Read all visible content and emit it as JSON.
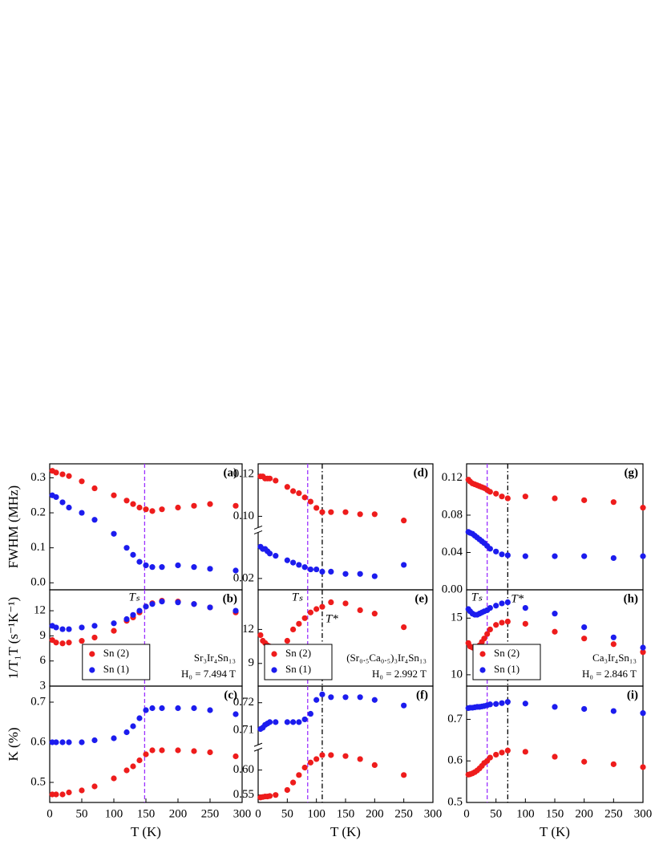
{
  "chart_data": [
    {
      "type": "scatter",
      "label": "(a)",
      "ylabel": "FWHM (MHz)",
      "xlim": [
        0,
        300
      ],
      "ylim": [
        -0.02,
        0.34
      ],
      "yticks": [
        {
          "value": 0,
          "label": "0.0"
        },
        0.1,
        0.2,
        0.3
      ],
      "vlines": [
        {
          "x": 148,
          "color": "#9b30ff",
          "style": "dashed"
        }
      ],
      "series": [
        {
          "color": "#ee1c1c",
          "x": [
            4,
            10,
            20,
            30,
            50,
            70,
            100,
            120,
            130,
            140,
            150,
            160,
            175,
            200,
            225,
            250,
            290
          ],
          "values": [
            0.32,
            0.315,
            0.31,
            0.305,
            0.29,
            0.27,
            0.25,
            0.235,
            0.225,
            0.215,
            0.21,
            0.205,
            0.21,
            0.215,
            0.22,
            0.225,
            0.22
          ]
        },
        {
          "color": "#1c1cee",
          "x": [
            4,
            10,
            20,
            30,
            50,
            70,
            100,
            120,
            130,
            140,
            150,
            160,
            175,
            200,
            225,
            250,
            290
          ],
          "values": [
            0.25,
            0.245,
            0.23,
            0.215,
            0.2,
            0.18,
            0.14,
            0.1,
            0.08,
            0.06,
            0.05,
            0.045,
            0.045,
            0.05,
            0.045,
            0.04,
            0.035
          ]
        }
      ]
    },
    {
      "type": "scatter",
      "label": "(b)",
      "ylabel": "1/T₁T (s⁻¹K⁻¹)",
      "xlim": [
        0,
        300
      ],
      "ylim": [
        3,
        14.5
      ],
      "yticks": [
        3,
        6,
        9,
        12
      ],
      "legend": "lower center",
      "text_lines": [
        "Sr₃Ir₄Sn₁₃",
        "H₀ = 7.494 T"
      ],
      "vlines": [
        {
          "x": 148,
          "color": "#9b30ff",
          "style": "dashed",
          "label": "Tₛ"
        }
      ],
      "series": [
        {
          "name": "Sn (2)",
          "color": "#ee1c1c",
          "x": [
            4,
            10,
            20,
            30,
            50,
            70,
            100,
            120,
            130,
            140,
            150,
            160,
            175,
            200,
            225,
            250,
            290
          ],
          "values": [
            8.5,
            8.2,
            8.1,
            8.2,
            8.4,
            8.8,
            9.6,
            10.8,
            11.2,
            11.8,
            12.5,
            12.9,
            13.2,
            13.1,
            12.8,
            12.4,
            11.8
          ]
        },
        {
          "name": "Sn (1)",
          "color": "#1c1cee",
          "x": [
            4,
            10,
            20,
            30,
            50,
            70,
            100,
            120,
            130,
            140,
            150,
            160,
            175,
            200,
            225,
            250,
            290
          ],
          "values": [
            10.2,
            10,
            9.8,
            9.8,
            10,
            10.2,
            10.5,
            11,
            11.5,
            12,
            12.5,
            12.8,
            13.1,
            13,
            12.8,
            12.4,
            12
          ]
        }
      ]
    },
    {
      "type": "scatter",
      "label": "(c)",
      "ylabel": "K (%)",
      "xlabel": "T (K)",
      "xlim": [
        0,
        300
      ],
      "ylim": [
        0.45,
        0.74
      ],
      "xticks": [
        0,
        50,
        100,
        150,
        200,
        250,
        300
      ],
      "yticks": [
        0.5,
        0.6,
        0.7
      ],
      "vlines": [
        {
          "x": 148,
          "color": "#9b30ff",
          "style": "dashed"
        }
      ],
      "series": [
        {
          "color": "#ee1c1c",
          "x": [
            4,
            10,
            20,
            30,
            50,
            70,
            100,
            120,
            130,
            140,
            150,
            160,
            175,
            200,
            225,
            250,
            290
          ],
          "values": [
            0.47,
            0.47,
            0.47,
            0.475,
            0.48,
            0.49,
            0.51,
            0.53,
            0.54,
            0.555,
            0.57,
            0.58,
            0.58,
            0.58,
            0.578,
            0.575,
            0.565
          ]
        },
        {
          "color": "#1c1cee",
          "x": [
            4,
            10,
            20,
            30,
            50,
            70,
            100,
            120,
            130,
            140,
            150,
            160,
            175,
            200,
            225,
            250,
            290
          ],
          "values": [
            0.6,
            0.6,
            0.6,
            0.6,
            0.6,
            0.605,
            0.61,
            0.625,
            0.64,
            0.66,
            0.68,
            0.685,
            0.685,
            0.685,
            0.685,
            0.68,
            0.67
          ]
        }
      ]
    },
    {
      "type": "scatter",
      "label": "(d)",
      "xlim": [
        0,
        300
      ],
      "ylim": [
        0.015,
        0.125
      ],
      "ybreak": [
        0.04,
        0.095
      ],
      "yticks": [
        0.02,
        {
          "value": 0.1,
          "label": "0.10"
        },
        0.12
      ],
      "vlines": [
        {
          "x": 85,
          "color": "#9b30ff",
          "style": "dashed"
        },
        {
          "x": 110,
          "color": "#000000",
          "style": "dashdot"
        }
      ],
      "series": [
        {
          "color": "#ee1c1c",
          "x": [
            4,
            8,
            12,
            16,
            20,
            30,
            50,
            60,
            70,
            80,
            90,
            100,
            110,
            125,
            150,
            175,
            200,
            250
          ],
          "values": [
            0.119,
            0.119,
            0.118,
            0.118,
            0.118,
            0.117,
            0.114,
            0.112,
            0.111,
            0.109,
            0.107,
            0.104,
            0.102,
            0.102,
            0.102,
            0.101,
            0.101,
            0.098
          ]
        },
        {
          "color": "#1c1cee",
          "x": [
            4,
            8,
            12,
            16,
            20,
            30,
            50,
            60,
            70,
            80,
            90,
            100,
            110,
            125,
            150,
            175,
            200,
            250
          ],
          "values": [
            0.034,
            0.033,
            0.033,
            0.032,
            0.031,
            0.03,
            0.028,
            0.027,
            0.026,
            0.025,
            0.024,
            0.024,
            0.023,
            0.023,
            0.022,
            0.022,
            0.021,
            0.026
          ]
        }
      ]
    },
    {
      "type": "scatter",
      "label": "(e)",
      "xlim": [
        0,
        300
      ],
      "ylim": [
        7,
        15.5
      ],
      "yticks": [
        9,
        12
      ],
      "legend": "lower left",
      "text_lines": [
        "(Sr₀.₅Ca₀.₅)₃Ir₄Sn₁₃",
        "H₀ = 2.992 T"
      ],
      "vlines": [
        {
          "x": 85,
          "color": "#9b30ff",
          "style": "dashed",
          "label": "Tₛ"
        },
        {
          "x": 110,
          "color": "#000000",
          "style": "dashdot",
          "label": "T*"
        }
      ],
      "series": [
        {
          "name": "Sn (2)",
          "color": "#ee1c1c",
          "x": [
            4,
            8,
            12,
            16,
            20,
            30,
            50,
            60,
            70,
            80,
            90,
            100,
            110,
            125,
            150,
            175,
            200,
            250
          ],
          "values": [
            11.5,
            11,
            10.8,
            10.6,
            10.5,
            10.4,
            11,
            12,
            12.5,
            13,
            13.5,
            13.8,
            14,
            14.4,
            14.3,
            13.7,
            13.4,
            12.2
          ]
        },
        {
          "name": "Sn (1)",
          "color": "#1c1cee",
          "x": [],
          "values": []
        }
      ]
    },
    {
      "type": "scatter",
      "label": "(f)",
      "xlabel": "T (K)",
      "xlim": [
        0,
        300
      ],
      "ylim": [
        0.535,
        0.726
      ],
      "ybreak": [
        0.64,
        0.705
      ],
      "xticks": [
        0,
        50,
        100,
        150,
        200,
        250,
        300
      ],
      "yticks": [
        0.55,
        {
          "value": 0.6,
          "label": "0.60"
        },
        0.71,
        0.72
      ],
      "vlines": [
        {
          "x": 85,
          "color": "#9b30ff",
          "style": "dashed"
        },
        {
          "x": 110,
          "color": "#000000",
          "style": "dashdot"
        }
      ],
      "series": [
        {
          "color": "#ee1c1c",
          "x": [
            4,
            8,
            12,
            16,
            20,
            30,
            50,
            60,
            70,
            80,
            90,
            100,
            110,
            125,
            150,
            175,
            200,
            250
          ],
          "values": [
            0.545,
            0.546,
            0.547,
            0.547,
            0.548,
            0.55,
            0.56,
            0.575,
            0.59,
            0.605,
            0.615,
            0.622,
            0.63,
            0.63,
            0.628,
            0.622,
            0.61,
            0.59
          ]
        },
        {
          "color": "#1c1cee",
          "x": [
            4,
            8,
            12,
            16,
            20,
            30,
            50,
            60,
            70,
            80,
            90,
            100,
            110,
            125,
            150,
            175,
            200,
            250
          ],
          "values": [
            0.7105,
            0.711,
            0.712,
            0.7125,
            0.713,
            0.713,
            0.713,
            0.713,
            0.713,
            0.714,
            0.716,
            0.721,
            0.723,
            0.722,
            0.722,
            0.722,
            0.721,
            0.719
          ]
        }
      ]
    },
    {
      "type": "scatter",
      "label": "(g)",
      "xlim": [
        0,
        300
      ],
      "ylim": [
        0,
        0.135
      ],
      "yticks": [
        {
          "value": 0,
          "label": "0.00"
        },
        0.04,
        0.08,
        0.12
      ],
      "vlines": [
        {
          "x": 35,
          "color": "#9b30ff",
          "style": "dashed"
        },
        {
          "x": 70,
          "color": "#000000",
          "style": "dashdot"
        }
      ],
      "series": [
        {
          "color": "#ee1c1c",
          "x": [
            3,
            6,
            10,
            14,
            18,
            22,
            26,
            30,
            35,
            40,
            50,
            60,
            70,
            100,
            150,
            200,
            250,
            300
          ],
          "values": [
            0.118,
            0.116,
            0.114,
            0.113,
            0.112,
            0.111,
            0.11,
            0.109,
            0.107,
            0.105,
            0.103,
            0.1,
            0.098,
            0.1,
            0.098,
            0.096,
            0.094,
            0.088
          ]
        },
        {
          "color": "#1c1cee",
          "x": [
            3,
            6,
            10,
            14,
            18,
            22,
            26,
            30,
            35,
            40,
            50,
            60,
            70,
            100,
            150,
            200,
            250,
            300
          ],
          "values": [
            0.062,
            0.061,
            0.06,
            0.058,
            0.056,
            0.054,
            0.052,
            0.05,
            0.047,
            0.044,
            0.041,
            0.038,
            0.037,
            0.036,
            0.036,
            0.036,
            0.034,
            0.036
          ]
        }
      ]
    },
    {
      "type": "scatter",
      "label": "(h)",
      "xlim": [
        0,
        300
      ],
      "ylim": [
        9,
        17.5
      ],
      "yticks": [
        10,
        15
      ],
      "legend": "lower left",
      "text_lines": [
        "Ca₃Ir₄Sn₁₃",
        "H₀ = 2.846 T"
      ],
      "vlines": [
        {
          "x": 35,
          "color": "#9b30ff",
          "style": "dashed",
          "label": "Tₛ"
        },
        {
          "x": 70,
          "color": "#000000",
          "style": "dashdot",
          "label": "T*"
        }
      ],
      "series": [
        {
          "name": "Sn (2)",
          "color": "#ee1c1c",
          "x": [
            3,
            6,
            10,
            14,
            18,
            22,
            26,
            30,
            35,
            40,
            50,
            60,
            70,
            100,
            150,
            200,
            250,
            300
          ],
          "values": [
            12.8,
            12.5,
            12.4,
            12.3,
            12.4,
            12.6,
            12.9,
            13.2,
            13.6,
            14,
            14.4,
            14.6,
            14.7,
            14.5,
            13.8,
            13.2,
            12.7,
            12
          ]
        },
        {
          "name": "Sn (1)",
          "color": "#1c1cee",
          "x": [
            3,
            6,
            10,
            14,
            18,
            22,
            26,
            30,
            35,
            40,
            50,
            60,
            70,
            100,
            150,
            200,
            250,
            300
          ],
          "values": [
            15.8,
            15.6,
            15.4,
            15.3,
            15.3,
            15.4,
            15.5,
            15.6,
            15.7,
            15.9,
            16.1,
            16.3,
            16.4,
            15.9,
            15.4,
            14.2,
            13.3,
            12.4
          ]
        }
      ]
    },
    {
      "type": "scatter",
      "label": "(i)",
      "xlabel": "T (K)",
      "xlim": [
        0,
        300
      ],
      "ylim": [
        0.5,
        0.78
      ],
      "xticks": [
        0,
        50,
        100,
        150,
        200,
        250,
        300
      ],
      "yticks": [
        0.5,
        0.6,
        0.7
      ],
      "vlines": [
        {
          "x": 35,
          "color": "#9b30ff",
          "style": "dashed"
        },
        {
          "x": 70,
          "color": "#000000",
          "style": "dashdot"
        }
      ],
      "series": [
        {
          "color": "#ee1c1c",
          "x": [
            3,
            6,
            10,
            14,
            18,
            22,
            26,
            30,
            35,
            40,
            50,
            60,
            70,
            100,
            150,
            200,
            250,
            300
          ],
          "values": [
            0.567,
            0.568,
            0.57,
            0.573,
            0.577,
            0.582,
            0.588,
            0.595,
            0.6,
            0.608,
            0.615,
            0.62,
            0.625,
            0.622,
            0.61,
            0.598,
            0.592,
            0.585
          ]
        },
        {
          "color": "#1c1cee",
          "x": [
            3,
            6,
            10,
            14,
            18,
            22,
            26,
            30,
            35,
            40,
            50,
            60,
            70,
            100,
            150,
            200,
            250,
            300
          ],
          "values": [
            0.727,
            0.728,
            0.728,
            0.729,
            0.73,
            0.73,
            0.731,
            0.732,
            0.734,
            0.736,
            0.737,
            0.739,
            0.742,
            0.738,
            0.73,
            0.725,
            0.72,
            0.715
          ]
        }
      ]
    }
  ]
}
